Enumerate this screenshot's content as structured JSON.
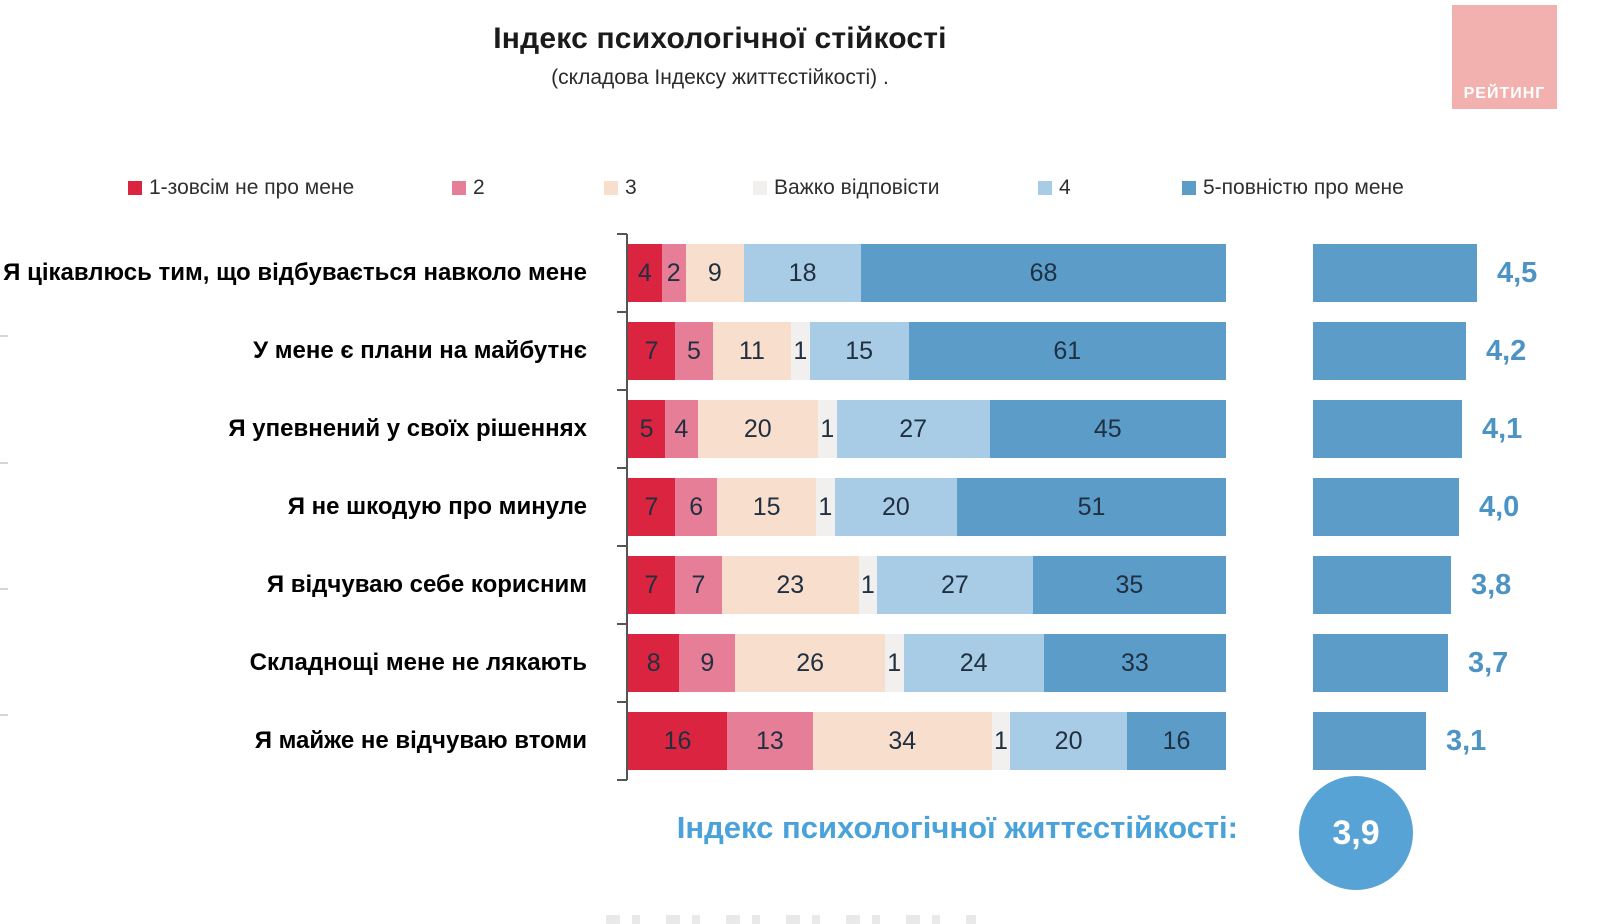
{
  "header": {
    "title": "Індекс психологічної стійкості",
    "subtitle": "(складова Індексу життєстійкості) .",
    "logo_text": "РЕЙТИНГ",
    "logo_color": "#f2b1ae"
  },
  "legend": [
    {
      "label": "1-зовсім не про мене",
      "color": "#da2440"
    },
    {
      "label": "2",
      "color": "#e77e97"
    },
    {
      "label": "3",
      "color": "#f8decd"
    },
    {
      "label": "Важко відповісти",
      "color": "#f1f0ee"
    },
    {
      "label": "4",
      "color": "#a9cce6"
    },
    {
      "label": "5-повністю про мене",
      "color": "#5b9cc9"
    }
  ],
  "chart_data": {
    "type": "bar",
    "stacked": true,
    "orientation": "horizontal",
    "normalized_to_100": true,
    "title": "Індекс психологічної стійкості",
    "subtitle": "(складова Індексу життєстійкості) .",
    "series_names": [
      "1-зовсім не про мене",
      "2",
      "3",
      "Важко відповісти",
      "4",
      "5-повністю про мене"
    ],
    "rows": [
      {
        "label": "Я цікавлюсь тим, що відбувається навколо мене",
        "values": [
          4,
          2,
          9,
          0,
          18,
          68
        ],
        "average_label": "4,5",
        "average": 4.5
      },
      {
        "label": "У мене є плани на майбутнє",
        "values": [
          7,
          5,
          11,
          1,
          15,
          61
        ],
        "average_label": "4,2",
        "average": 4.2
      },
      {
        "label": "Я упевнений у своїх рішеннях",
        "values": [
          5,
          4,
          20,
          1,
          27,
          45
        ],
        "average_label": "4,1",
        "average": 4.1
      },
      {
        "label": "Я не шкодую про минуле",
        "values": [
          7,
          6,
          15,
          1,
          20,
          51
        ],
        "average_label": "4,0",
        "average": 4.0
      },
      {
        "label": "Я відчуваю себе корисним",
        "values": [
          7,
          7,
          23,
          1,
          27,
          35
        ],
        "average_label": "3,8",
        "average": 3.8
      },
      {
        "label": "Складнощі мене не лякають",
        "values": [
          8,
          9,
          26,
          1,
          24,
          33
        ],
        "average_label": "3,7",
        "average": 3.7
      },
      {
        "label": "Я майже не відчуваю втоми",
        "values": [
          16,
          13,
          34,
          1,
          20,
          16
        ],
        "average_label": "3,1",
        "average": 3.1
      }
    ],
    "average_axis_max": 5,
    "footer_label": "Індекс психологічної життєстійкості:",
    "footer_value": "3,9"
  },
  "colors": {
    "avg_bar": "#5b9cc9",
    "avg_text": "#4d94c4",
    "footer_text": "#4aa2da",
    "circle": "#57a3d6",
    "bar_number_text": "#203040"
  }
}
